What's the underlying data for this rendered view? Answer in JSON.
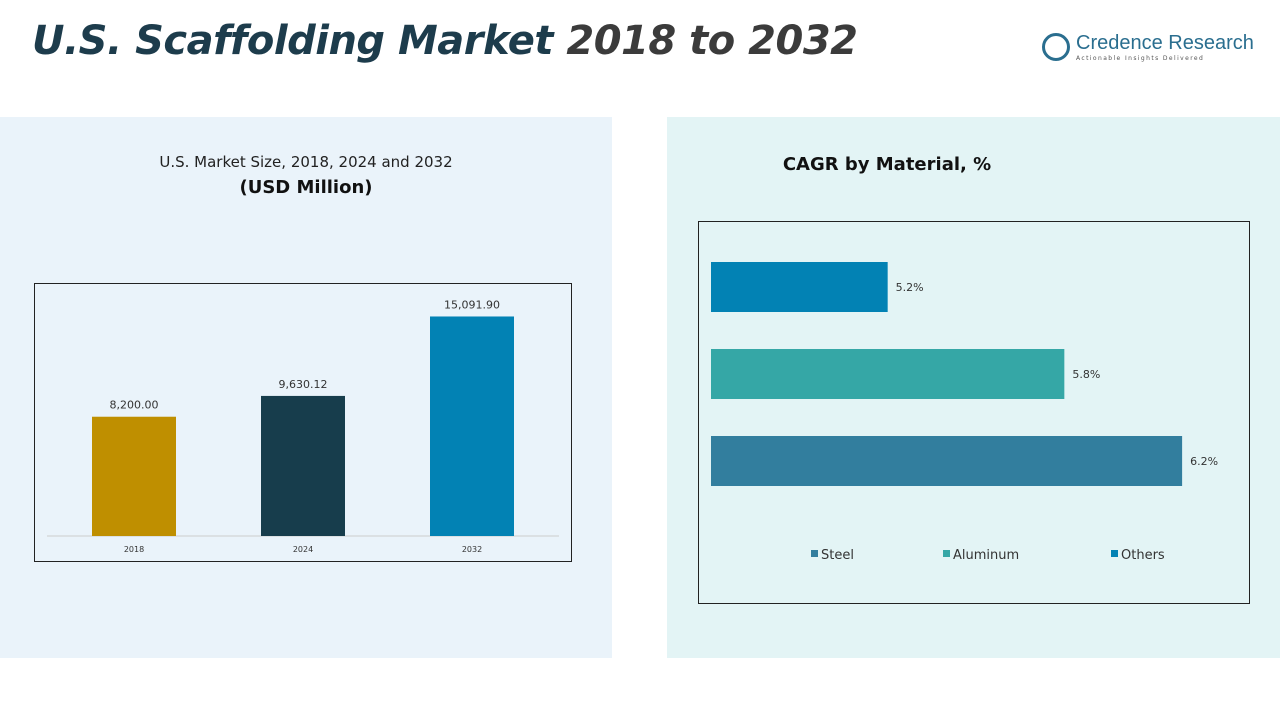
{
  "header": {
    "title_main": "U.S. Scaffolding Market",
    "title_years": "2018 to 2032",
    "logo_name": "Credence Research",
    "logo_tagline": "Actionable Insights Delivered"
  },
  "chart_data": [
    {
      "type": "bar",
      "title": "U.S. Market Size, 2018, 2024 and 2032",
      "subtitle": "(USD Million)",
      "categories": [
        "2018",
        "2024",
        "2032"
      ],
      "values": [
        8200.0,
        9630.12,
        15091.9
      ],
      "labels": [
        "8,200.00",
        "9,630.12",
        "15,091.90"
      ],
      "colors": [
        "#bf8f00",
        "#173d4c",
        "#0282b4"
      ],
      "ylim": [
        0,
        16500
      ],
      "grid": false
    },
    {
      "type": "bar",
      "orientation": "horizontal",
      "title": "CAGR by Material, %",
      "categories": [
        "Others",
        "Aluminum",
        "Steel"
      ],
      "values": [
        5.2,
        5.8,
        6.2
      ],
      "labels": [
        "5.2%",
        "5.8%",
        "6.2%"
      ],
      "colors": [
        "#0282b4",
        "#35a7a6",
        "#327e9e"
      ],
      "xlim": [
        4.6,
        6.4
      ],
      "grid": false,
      "legend": {
        "placement": "bottom",
        "entries": [
          {
            "name": "Steel",
            "color": "#327e9e"
          },
          {
            "name": "Aluminum",
            "color": "#35a7a6"
          },
          {
            "name": "Others",
            "color": "#0282b4"
          }
        ]
      }
    }
  ]
}
